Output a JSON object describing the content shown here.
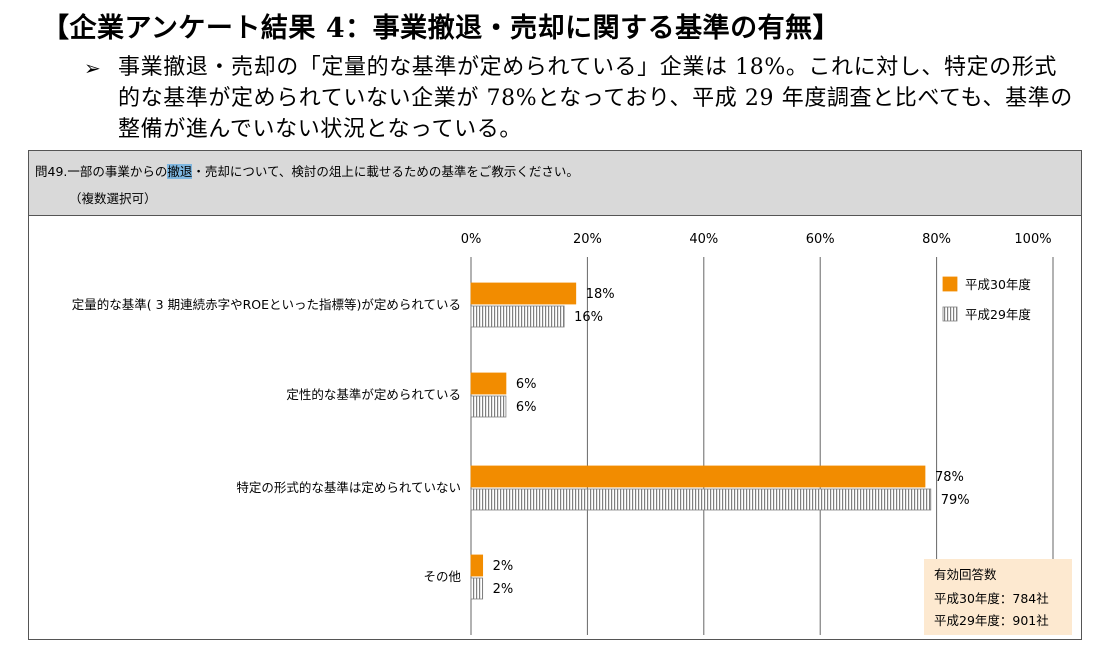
{
  "heading": "【企業アンケート結果 4：事業撤退・売却に関する基準の有無】",
  "bullet": {
    "mark": "➢",
    "text": "事業撤退・売却の「定量的な基準が定められている」企業は 18%。これに対し、特定の形式的な基準が定められていない企業が 78%となっており、平成 29 年度調査と比べても、基準の整備が進んでいない状況となっている。"
  },
  "question": {
    "prefix": "問49.一部の事業からの",
    "highlight": "撤退",
    "suffix": "・売却について、検討の俎上に載せるための基準をご教示ください。",
    "note": "（複数選択可）"
  },
  "colors": {
    "h30": "#f28c00",
    "h29": "#ffffff",
    "h29_stripe": "#808080",
    "note_bg": "#fde9d0"
  },
  "chart_data": {
    "type": "bar",
    "orientation": "horizontal",
    "categories": [
      "定量的な基準( 3 期連続赤字やROEといった指標等)が定められている",
      "定性的な基準が定められている",
      "特定の形式的な基準は定められていない",
      "その他"
    ],
    "series": [
      {
        "name": "平成30年度",
        "values": [
          18,
          6,
          78,
          2
        ],
        "labels": [
          "18%",
          "6%",
          "78%",
          "2%"
        ]
      },
      {
        "name": "平成29年度",
        "values": [
          16,
          6,
          79,
          2
        ],
        "labels": [
          "16%",
          "6%",
          "79%",
          "2%"
        ]
      }
    ],
    "xlim": [
      0,
      100
    ],
    "ticks": [
      "0%",
      "20%",
      "40%",
      "60%",
      "80%",
      "100%"
    ],
    "grid": true,
    "legend": "top-right"
  },
  "note": {
    "title": "有効回答数",
    "line1": "平成30年度：784社",
    "line2": "平成29年度：901社"
  }
}
